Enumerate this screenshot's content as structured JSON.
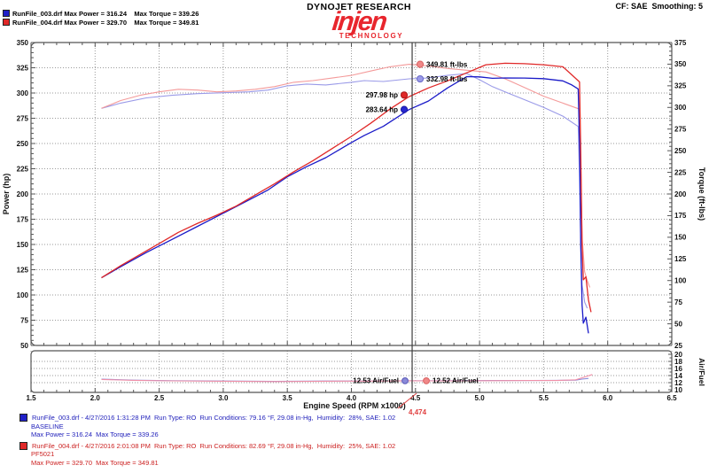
{
  "brand": {
    "dynojet": "DYNOJET RESEARCH",
    "injen": "injen",
    "injen_sub": "TECHNOLOGY"
  },
  "settings": {
    "cf_smoothing": "CF: SAE  Smoothing: 5"
  },
  "top_legend": {
    "run1": "RunFile_003.drf Max Power = 316.24    Max Torque = 339.26",
    "run2": "RunFile_004.drf Max Power = 329.70    Max Torque = 349.81"
  },
  "bottom_legend": {
    "runs": [
      {
        "line1": "RunFile_003.drf - 4/27/2016 1:31:28 PM  Run Type: RO  Run Conditions: 79.16 °F, 29.08 in-Hg,  Humidity:  28%, SAE: 1.02",
        "line2": "BASELINE",
        "line3": "Max Power = 316.24  Max Torque = 339.26",
        "color": "#2222bb",
        "swatch": "#2020c8"
      },
      {
        "line1": "RunFile_004.drf - 4/27/2016 2:01:08 PM  Run Type: RO  Run Conditions: 82.69 °F, 29.08 in-Hg,  Humidity:  25%, SAE: 1.02",
        "line2": "PF5021",
        "line3": "Max Power = 329.70  Max Torque = 349.81",
        "color": "#cc2222",
        "swatch": "#e02828"
      }
    ]
  },
  "colors": {
    "grid": "#9a9a9a",
    "frame": "#555555",
    "cursor": "#3c3c3c",
    "tick_label": "#111111",
    "annotation_text": "#000000",
    "cursor_readout": "#e04040",
    "swatch_run1": "#2020c8",
    "swatch_run2": "#e02828"
  },
  "chart_data": {
    "type": "line",
    "x_axis": {
      "label": "Engine Speed (RPM x1000)",
      "min": 1.5,
      "max": 6.5,
      "major": 0.5,
      "minor": 0.1
    },
    "y_left": {
      "label": "Power (hp)",
      "min": 50,
      "max": 350,
      "major": 25,
      "minor": 5
    },
    "y_right": {
      "label": "Torque (ft-lbs)",
      "min": 25,
      "max": 375,
      "major": 25,
      "minor": 5
    },
    "y_af": {
      "label": "Air/Fuel",
      "min": 10,
      "max": 20,
      "major": 2,
      "minor": 1
    },
    "cursor": {
      "rpm": 4.474,
      "readout": "4,474"
    },
    "series": [
      {
        "name": "torque_run1",
        "run": "RunFile_003.drf",
        "axis": "right",
        "color": "#9a9ae8",
        "points": [
          [
            2.05,
            299
          ],
          [
            2.2,
            305
          ],
          [
            2.4,
            311
          ],
          [
            2.6,
            314
          ],
          [
            2.8,
            316
          ],
          [
            3.0,
            317
          ],
          [
            3.2,
            318
          ],
          [
            3.35,
            320
          ],
          [
            3.5,
            325
          ],
          [
            3.65,
            327
          ],
          [
            3.8,
            326
          ],
          [
            4.0,
            329
          ],
          [
            4.1,
            331
          ],
          [
            4.25,
            330
          ],
          [
            4.45,
            333
          ],
          [
            4.6,
            334
          ],
          [
            4.75,
            337
          ],
          [
            4.9,
            339.2
          ],
          [
            5.0,
            332
          ],
          [
            5.1,
            324
          ],
          [
            5.2,
            318
          ],
          [
            5.35,
            309
          ],
          [
            5.5,
            300
          ],
          [
            5.65,
            290
          ],
          [
            5.77,
            278
          ],
          [
            5.78,
            220
          ],
          [
            5.79,
            140
          ],
          [
            5.8,
            95
          ],
          [
            5.82,
            75
          ],
          [
            5.84,
            68
          ]
        ]
      },
      {
        "name": "torque_run2",
        "run": "RunFile_004.drf",
        "axis": "right",
        "color": "#f49a9a",
        "points": [
          [
            2.05,
            299
          ],
          [
            2.2,
            308
          ],
          [
            2.35,
            314
          ],
          [
            2.5,
            318
          ],
          [
            2.65,
            321
          ],
          [
            2.8,
            320
          ],
          [
            2.95,
            318
          ],
          [
            3.1,
            319
          ],
          [
            3.25,
            321
          ],
          [
            3.4,
            324
          ],
          [
            3.55,
            329
          ],
          [
            3.7,
            331
          ],
          [
            3.85,
            334
          ],
          [
            4.0,
            337
          ],
          [
            4.15,
            342
          ],
          [
            4.3,
            347
          ],
          [
            4.45,
            349.8
          ],
          [
            4.6,
            348
          ],
          [
            4.75,
            345
          ],
          [
            4.9,
            343
          ],
          [
            5.05,
            341
          ],
          [
            5.2,
            333
          ],
          [
            5.35,
            323
          ],
          [
            5.5,
            313
          ],
          [
            5.65,
            305
          ],
          [
            5.78,
            298
          ],
          [
            5.79,
            230
          ],
          [
            5.8,
            150
          ],
          [
            5.82,
            110
          ],
          [
            5.84,
            100
          ],
          [
            5.86,
            92
          ]
        ]
      },
      {
        "name": "power_run1",
        "run": "RunFile_003.drf",
        "axis": "left",
        "color": "#1a1ac8",
        "points": [
          [
            2.05,
            117
          ],
          [
            2.2,
            128
          ],
          [
            2.4,
            142
          ],
          [
            2.6,
            155
          ],
          [
            2.8,
            168
          ],
          [
            3.0,
            181
          ],
          [
            3.2,
            194
          ],
          [
            3.35,
            204
          ],
          [
            3.5,
            217
          ],
          [
            3.65,
            227
          ],
          [
            3.8,
            236
          ],
          [
            4.0,
            251
          ],
          [
            4.1,
            258
          ],
          [
            4.25,
            267
          ],
          [
            4.45,
            283.6
          ],
          [
            4.6,
            292
          ],
          [
            4.75,
            305
          ],
          [
            4.9,
            316.2
          ],
          [
            5.0,
            316
          ],
          [
            5.1,
            314.6
          ],
          [
            5.2,
            314.9
          ],
          [
            5.35,
            314.8
          ],
          [
            5.5,
            314.2
          ],
          [
            5.65,
            312
          ],
          [
            5.72,
            308
          ],
          [
            5.77,
            304
          ],
          [
            5.78,
            250
          ],
          [
            5.79,
            150
          ],
          [
            5.8,
            90
          ],
          [
            5.81,
            72
          ],
          [
            5.83,
            78
          ],
          [
            5.85,
            62
          ]
        ]
      },
      {
        "name": "power_run2",
        "run": "RunFile_004.drf",
        "axis": "left",
        "color": "#e02828",
        "points": [
          [
            2.05,
            117
          ],
          [
            2.2,
            129
          ],
          [
            2.35,
            140
          ],
          [
            2.5,
            151
          ],
          [
            2.65,
            162
          ],
          [
            2.8,
            171
          ],
          [
            2.95,
            179
          ],
          [
            3.1,
            188
          ],
          [
            3.25,
            199
          ],
          [
            3.4,
            210
          ],
          [
            3.55,
            222
          ],
          [
            3.7,
            233
          ],
          [
            3.85,
            245
          ],
          [
            4.0,
            257
          ],
          [
            4.15,
            270
          ],
          [
            4.3,
            284
          ],
          [
            4.45,
            296.4
          ],
          [
            4.6,
            305
          ],
          [
            4.75,
            312
          ],
          [
            4.9,
            320
          ],
          [
            5.05,
            328
          ],
          [
            5.2,
            329.5
          ],
          [
            5.35,
            329
          ],
          [
            5.5,
            328
          ],
          [
            5.65,
            326
          ],
          [
            5.72,
            318
          ],
          [
            5.78,
            311
          ],
          [
            5.79,
            240
          ],
          [
            5.8,
            150
          ],
          [
            5.81,
            115
          ],
          [
            5.83,
            118
          ],
          [
            5.85,
            95
          ],
          [
            5.87,
            83
          ]
        ]
      },
      {
        "name": "af_run1",
        "run": "RunFile_003.drf",
        "axis": "af",
        "color": "#8a8ad8",
        "points": [
          [
            2.05,
            13.0
          ],
          [
            2.3,
            12.7
          ],
          [
            2.6,
            12.55
          ],
          [
            3.0,
            12.45
          ],
          [
            3.4,
            12.35
          ],
          [
            3.8,
            12.45
          ],
          [
            4.2,
            12.5
          ],
          [
            4.47,
            12.53
          ],
          [
            4.8,
            12.55
          ],
          [
            5.1,
            12.6
          ],
          [
            5.4,
            12.6
          ],
          [
            5.6,
            12.65
          ],
          [
            5.75,
            12.7
          ],
          [
            5.8,
            13.0
          ],
          [
            5.85,
            13.2
          ]
        ]
      },
      {
        "name": "af_run2",
        "run": "RunFile_004.drf",
        "axis": "af",
        "color": "#f090a8",
        "points": [
          [
            2.05,
            12.9
          ],
          [
            2.3,
            12.65
          ],
          [
            2.6,
            12.5
          ],
          [
            3.0,
            12.4
          ],
          [
            3.4,
            12.3
          ],
          [
            3.8,
            12.4
          ],
          [
            4.2,
            12.45
          ],
          [
            4.47,
            12.52
          ],
          [
            4.8,
            12.5
          ],
          [
            5.1,
            12.55
          ],
          [
            5.4,
            12.6
          ],
          [
            5.6,
            12.6
          ],
          [
            5.75,
            12.8
          ],
          [
            5.82,
            13.6
          ],
          [
            5.88,
            14.3
          ]
        ]
      }
    ],
    "cursor_annotations": [
      {
        "text": "349.81 ft-lbs",
        "axis": "right",
        "value": 349.81,
        "dot_color": "#f08888",
        "dot_stroke": "#d86060",
        "side": "right"
      },
      {
        "text": "332.98 ft-lbs",
        "axis": "right",
        "value": 332.98,
        "dot_color": "#9a9ae8",
        "dot_stroke": "#6a6ac8",
        "side": "right"
      },
      {
        "text": "297.98 hp",
        "axis": "left",
        "value": 297.98,
        "dot_color": "#e02828",
        "dot_stroke": "#a81818",
        "side": "left"
      },
      {
        "text": "283.64 hp",
        "axis": "left",
        "value": 283.64,
        "dot_color": "#2828d0",
        "dot_stroke": "#1818a0",
        "side": "left"
      }
    ],
    "af_annotations": [
      {
        "text": "12.53 Air/Fuel",
        "value": 12.53,
        "dot_color": "#8a8ad8",
        "dot_stroke": "#5a5ab8",
        "side": "left"
      },
      {
        "text": "12.52 Air/Fuel",
        "value": 12.52,
        "dot_color": "#f08888",
        "dot_stroke": "#d86060",
        "side": "right"
      }
    ]
  }
}
